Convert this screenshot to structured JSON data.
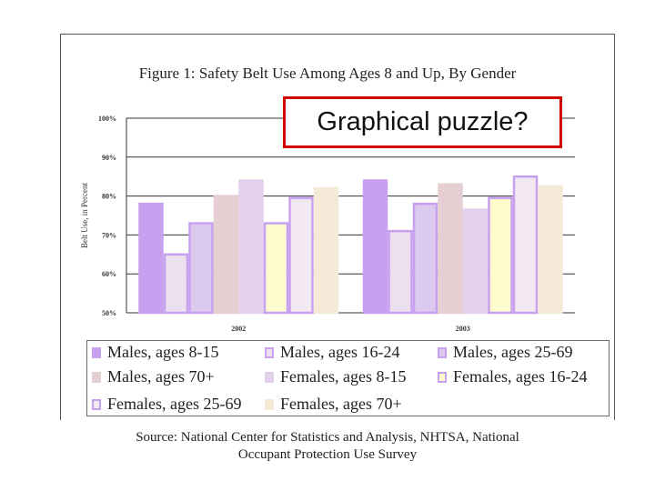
{
  "chart_data": {
    "type": "bar",
    "title": "Figure 1: Safety Belt Use Among Ages 8 and Up, By Gender",
    "ylabel": "Belt Use, in Percent",
    "xlabel": "",
    "ylim": [
      50,
      100
    ],
    "yticks": [
      100,
      90,
      80,
      70,
      60,
      50
    ],
    "ytick_labels": [
      "100%",
      "90%",
      "80%",
      "70%",
      "60%",
      "50%"
    ],
    "categories": [
      "2002",
      "2003"
    ],
    "grid": true,
    "legend_position": "bottom",
    "series": [
      {
        "name": "Males, ages 8-15",
        "values": [
          78,
          84
        ],
        "color": "#c7a1f0",
        "border": "#c7a1f0"
      },
      {
        "name": "Males, ages 16-24",
        "values": [
          65,
          71
        ],
        "color": "#ece0ee",
        "border": "#c7a1f0"
      },
      {
        "name": "Males, ages 25-69",
        "values": [
          73,
          78
        ],
        "color": "#dbc9ee",
        "border": "#c7a1f0"
      },
      {
        "name": "Males, ages 70+",
        "values": [
          80,
          83
        ],
        "color": "#e5cfd2",
        "border": "#e5cfd2"
      },
      {
        "name": "Females, ages 8-15",
        "values": [
          84,
          76.5
        ],
        "color": "#e3d0ec",
        "border": "#e3d0ec"
      },
      {
        "name": "Females, ages 16-24",
        "values": [
          73,
          79.5
        ],
        "color": "#fdfbce",
        "border": "#c7a1f0"
      },
      {
        "name": "Females, ages 25-69",
        "values": [
          79.5,
          85
        ],
        "color": "#f2e8f2",
        "border": "#c7a1f0"
      },
      {
        "name": "Females, ages 70+",
        "values": [
          82,
          82.5
        ],
        "color": "#f5ead8",
        "border": "#f5ead8"
      }
    ]
  },
  "annotation": {
    "text": "Graphical puzzle?"
  },
  "source": {
    "line1": "Source: National Center for Statistics and Analysis, NHTSA, National",
    "line2": "Occupant Protection Use Survey"
  }
}
